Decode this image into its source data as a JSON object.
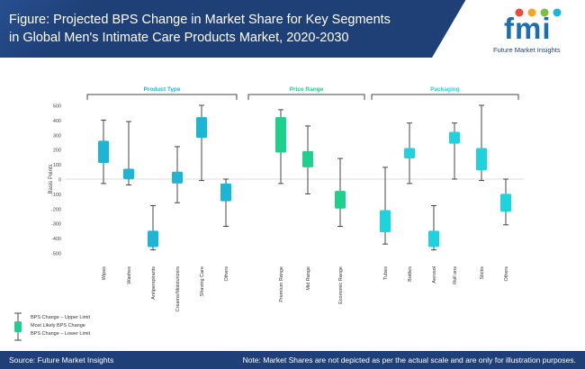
{
  "header": {
    "title_line1": "Figure: Projected BPS Change in Market Share for Key Segments",
    "title_line2": "in Global Men's Intimate Care Products Market, 2020-2030"
  },
  "logo": {
    "mark": "fmi",
    "name": "Future Market Insights"
  },
  "footer": {
    "source": "Source: Future Market Insights",
    "note": "Note: Market Shares are not depicted as per the actual scale and are only for illustration purposes."
  },
  "colors": {
    "header_bg": "#1f3f77",
    "group1": "#1bb6d6",
    "group2": "#1fcf8e",
    "group3": "#1fd3de"
  },
  "chart_data": {
    "type": "box",
    "ylabel": "Basis Points",
    "ylim": [
      -500,
      500
    ],
    "yticks": [
      500,
      400,
      300,
      200,
      100,
      0,
      -100,
      -200,
      -300,
      -400,
      -500
    ],
    "groups": [
      {
        "name": "Product Type",
        "color": "#1bb6d6",
        "items": [
          {
            "category": "Wipes",
            "upper": 400,
            "box_top": 260,
            "box_bottom": 110,
            "lower": -30
          },
          {
            "category": "Washes",
            "upper": 390,
            "box_top": 70,
            "box_bottom": 0,
            "lower": -40
          },
          {
            "category": "Antiperspirants",
            "upper": -180,
            "box_top": -350,
            "box_bottom": -460,
            "lower": -480
          },
          {
            "category": "Creams/Moisturizers",
            "upper": 220,
            "box_top": 50,
            "box_bottom": -30,
            "lower": -160
          },
          {
            "category": "Shaving Care",
            "upper": 500,
            "box_top": 420,
            "box_bottom": 280,
            "lower": -10
          },
          {
            "category": "Others",
            "upper": 0,
            "box_top": -30,
            "box_bottom": -150,
            "lower": -320
          }
        ]
      },
      {
        "name": "Price Range",
        "color": "#1fcf8e",
        "items": [
          {
            "category": "Premium Range",
            "upper": 470,
            "box_top": 420,
            "box_bottom": 180,
            "lower": -30
          },
          {
            "category": "Mid Range",
            "upper": 360,
            "box_top": 190,
            "box_bottom": 80,
            "lower": -100
          },
          {
            "category": "Economic Range",
            "upper": 140,
            "box_top": -80,
            "box_bottom": -200,
            "lower": -320
          }
        ]
      },
      {
        "name": "Packaging",
        "color": "#1fd3de",
        "items": [
          {
            "category": "Tubes",
            "upper": 80,
            "box_top": -210,
            "box_bottom": -360,
            "lower": -440
          },
          {
            "category": "Bottles",
            "upper": 380,
            "box_top": 210,
            "box_bottom": 140,
            "lower": -30
          },
          {
            "category": "Aerosol",
            "upper": -180,
            "box_top": -350,
            "box_bottom": -460,
            "lower": -480
          },
          {
            "category": "Roll ons",
            "upper": 380,
            "box_top": 320,
            "box_bottom": 240,
            "lower": 0
          },
          {
            "category": "Sticks",
            "upper": 500,
            "box_top": 210,
            "box_bottom": 60,
            "lower": -10
          },
          {
            "category": "Others",
            "upper": 0,
            "box_top": -100,
            "box_bottom": -220,
            "lower": -310
          }
        ]
      }
    ],
    "legend": {
      "placement": "bottom-left",
      "entries": [
        "BPS Change – Upper Limit",
        "Most Likely BPS Change",
        "BPS Change – Lower Limit"
      ]
    }
  }
}
